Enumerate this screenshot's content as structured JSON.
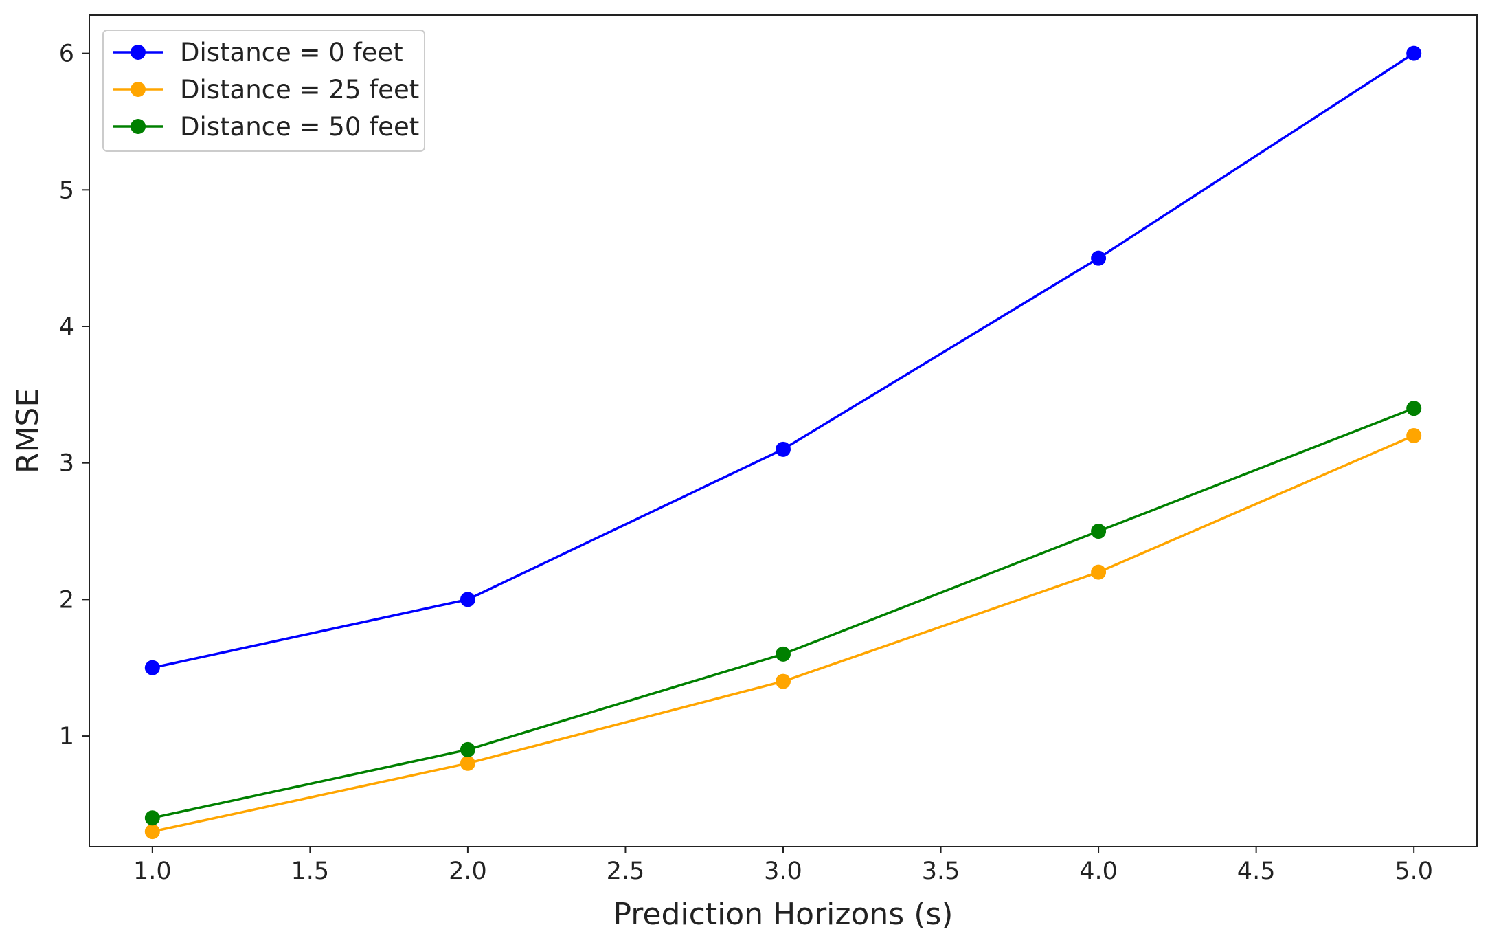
{
  "chart_data": {
    "type": "line",
    "title": "",
    "xlabel": "Prediction Horizons (s)",
    "ylabel": "RMSE",
    "xlim": [
      0.8,
      5.2
    ],
    "ylim": [
      0.19,
      6.28
    ],
    "x_ticks": [
      1.0,
      1.5,
      2.0,
      2.5,
      3.0,
      3.5,
      4.0,
      4.5,
      5.0
    ],
    "x_tick_labels": [
      "1.0",
      "1.5",
      "2.0",
      "2.5",
      "3.0",
      "3.5",
      "4.0",
      "4.5",
      "5.0"
    ],
    "y_ticks": [
      1,
      2,
      3,
      4,
      5,
      6
    ],
    "y_tick_labels": [
      "1",
      "2",
      "3",
      "4",
      "5",
      "6"
    ],
    "grid": false,
    "legend_position": "upper-left",
    "x": [
      1.0,
      2.0,
      3.0,
      4.0,
      5.0
    ],
    "series": [
      {
        "name": "Distance = 0 feet",
        "color": "#0000ff",
        "marker": "circle",
        "values": [
          1.5,
          2.0,
          3.1,
          4.5,
          6.0
        ]
      },
      {
        "name": "Distance = 25 feet",
        "color": "#ffa500",
        "marker": "circle",
        "values": [
          0.3,
          0.8,
          1.4,
          2.2,
          3.2
        ]
      },
      {
        "name": "Distance = 50 feet",
        "color": "#008000",
        "marker": "circle",
        "values": [
          0.4,
          0.9,
          1.6,
          2.5,
          3.4
        ]
      }
    ]
  }
}
